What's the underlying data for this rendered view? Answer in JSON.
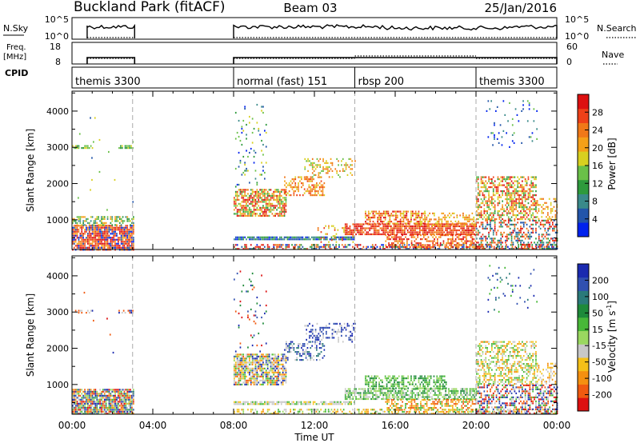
{
  "chart_data": {
    "type": "heatmap",
    "title": {
      "station": "Buckland Park (fitACF)",
      "beam": "Beam 03",
      "date": "25/Jan/2016"
    },
    "x_axis": {
      "label": "Time UT",
      "ticks": [
        "00:00",
        "04:00",
        "08:00",
        "12:00",
        "16:00",
        "20:00",
        "00:00"
      ],
      "range_hours": [
        0,
        24
      ]
    },
    "header_panels": {
      "nsky": {
        "left_label": "N.Sky",
        "left_ticks": [
          "10^5",
          "10^0"
        ],
        "right_ticks": [
          "10^5",
          "10^0"
        ],
        "right_label": "N.Search",
        "segments_hours": [
          [
            0.75,
            3.1
          ],
          [
            8.0,
            24.0
          ]
        ]
      },
      "freq": {
        "left_label_1": "Freq.",
        "left_label_2": "[MHz]",
        "left_ticks": [
          "18",
          "8"
        ],
        "right_ticks": [
          "60",
          "0"
        ],
        "right_label": "Nave"
      },
      "cpid": {
        "label": "CPID",
        "modes": [
          {
            "text": "themis 3300",
            "start_hour": 0.0
          },
          {
            "text": "normal (fast) 151",
            "start_hour": 8.0
          },
          {
            "text": "rbsp 200",
            "start_hour": 14.0
          },
          {
            "text": "themis 3300",
            "start_hour": 20.0
          }
        ]
      }
    },
    "power_panel": {
      "ylabel": "Slant Range [km]",
      "yticks": [
        1000,
        2000,
        3000,
        4000
      ],
      "ylim": [
        180,
        4550
      ],
      "colorbar_label": "Power [dB]",
      "colorbar_ticks": [
        "28",
        "24",
        "20",
        "16",
        "12",
        "8",
        "4"
      ],
      "colors": [
        "#0022ee",
        "#2255aa",
        "#3a8a8a",
        "#2e9a3c",
        "#6ac048",
        "#d8d020",
        "#f5a018",
        "#f07818",
        "#ee4018",
        "#dd1010"
      ]
    },
    "velocity_panel": {
      "ylabel": "Slant Range [km]",
      "yticks": [
        1000,
        2000,
        3000,
        4000
      ],
      "ylim": [
        180,
        4550
      ],
      "colorbar_label": "Velocity [m s^-1]",
      "colorbar_ticks": [
        "200",
        "100",
        "50",
        "15",
        "-15",
        "-50",
        "-100",
        "-200"
      ],
      "colors": [
        "#1a2ab0",
        "#3050b0",
        "#2a7a7a",
        "#1e8a3a",
        "#48b838",
        "#9ad860",
        "#c8c8c8",
        "#f5c018",
        "#f59010",
        "#f05a10",
        "#dd1010"
      ]
    }
  }
}
